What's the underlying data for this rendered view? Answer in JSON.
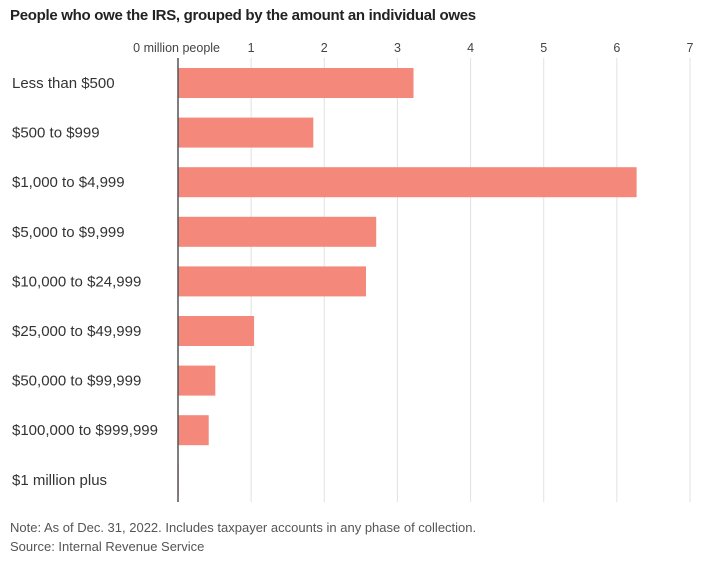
{
  "chart_data": {
    "type": "bar",
    "orientation": "horizontal",
    "title": "People who owe the IRS, grouped by the amount an individual owes",
    "xlabel": "million people",
    "ylabel": "",
    "xlim": [
      0,
      7
    ],
    "x_ticks": [
      0,
      1,
      2,
      3,
      4,
      5,
      6,
      7
    ],
    "x_tick_labels": [
      "0 million people",
      "1",
      "2",
      "3",
      "4",
      "5",
      "6",
      "7"
    ],
    "grid": true,
    "bar_color": "#f4887a",
    "categories": [
      "Less than $500",
      "$500 to $999",
      "$1,000 to $4,999",
      "$5,000 to $9,999",
      "$10,000 to $24,999",
      "$25,000 to $49,999",
      "$50,000 to $99,999",
      "$100,000 to $999,999",
      "$1 million plus"
    ],
    "values": [
      3.22,
      1.85,
      6.27,
      2.71,
      2.57,
      1.04,
      0.51,
      0.42,
      0.01
    ]
  },
  "footer": {
    "note": "Note: As of Dec. 31, 2022. Includes taxpayer accounts in any phase of collection.",
    "source": "Source: Internal Revenue Service"
  }
}
